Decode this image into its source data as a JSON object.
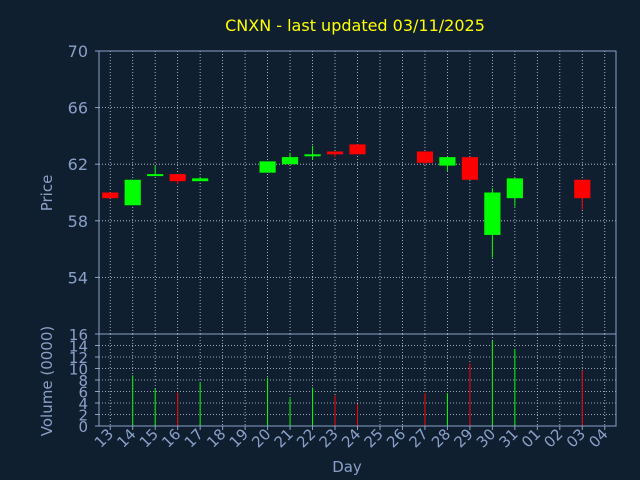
{
  "chart_data": [
    {
      "type": "candlestick",
      "title": "CNXN - last updated 03/11/2025",
      "ylabel": "Price",
      "ylim": [
        50,
        70
      ],
      "yticks": [
        54,
        58,
        62,
        66,
        70
      ],
      "grid": true,
      "categories": [
        "13",
        "14",
        "15",
        "16",
        "17",
        "18",
        "19",
        "20",
        "21",
        "22",
        "23",
        "24",
        "25",
        "26",
        "27",
        "28",
        "29",
        "30",
        "31",
        "01",
        "02",
        "03",
        "04"
      ],
      "candles": [
        {
          "x": "13",
          "open": 60.0,
          "close": 59.6,
          "high": 60.0,
          "low": 59.6
        },
        {
          "x": "14",
          "open": 59.1,
          "close": 60.9,
          "high": 60.9,
          "low": 59.1
        },
        {
          "x": "15",
          "open": 61.2,
          "close": 61.3,
          "high": 61.9,
          "low": 61.2
        },
        {
          "x": "16",
          "open": 61.3,
          "close": 60.8,
          "high": 61.3,
          "low": 60.6
        },
        {
          "x": "17",
          "open": 60.8,
          "close": 61.0,
          "high": 61.1,
          "low": 60.8
        },
        {
          "x": "20",
          "open": 61.4,
          "close": 62.2,
          "high": 62.2,
          "low": 61.4
        },
        {
          "x": "21",
          "open": 62.0,
          "close": 62.5,
          "high": 62.8,
          "low": 62.0
        },
        {
          "x": "22",
          "open": 62.6,
          "close": 62.7,
          "high": 63.3,
          "low": 62.3
        },
        {
          "x": "23",
          "open": 62.9,
          "close": 62.7,
          "high": 62.9,
          "low": 62.5
        },
        {
          "x": "24",
          "open": 63.4,
          "close": 62.7,
          "high": 63.4,
          "low": 62.7
        },
        {
          "x": "27",
          "open": 62.9,
          "close": 62.1,
          "high": 62.9,
          "low": 62.0
        },
        {
          "x": "28",
          "open": 61.9,
          "close": 62.5,
          "high": 62.5,
          "low": 61.5
        },
        {
          "x": "29",
          "open": 62.5,
          "close": 60.9,
          "high": 62.5,
          "low": 60.9
        },
        {
          "x": "30",
          "open": 57.0,
          "close": 60.0,
          "high": 60.3,
          "low": 55.4
        },
        {
          "x": "31",
          "open": 59.6,
          "close": 61.0,
          "high": 61.0,
          "low": 59.0
        },
        {
          "x": "03",
          "open": 60.9,
          "close": 59.6,
          "high": 60.9,
          "low": 58.8
        }
      ],
      "colors": {
        "up": "#00ff00",
        "down": "#ff0000"
      }
    },
    {
      "type": "bar",
      "ylabel": "Volume (0000)",
      "xlabel": "Day",
      "ylim": [
        0,
        16
      ],
      "yticks": [
        0,
        2,
        4,
        6,
        8,
        10,
        12,
        14,
        16
      ],
      "grid": true,
      "categories": [
        "13",
        "14",
        "15",
        "16",
        "17",
        "18",
        "19",
        "20",
        "21",
        "22",
        "23",
        "24",
        "25",
        "26",
        "27",
        "28",
        "29",
        "30",
        "31",
        "01",
        "02",
        "03",
        "04"
      ],
      "volumes": [
        {
          "x": "14",
          "value": 8.8,
          "dir": "up"
        },
        {
          "x": "15",
          "value": 6.5,
          "dir": "up"
        },
        {
          "x": "16",
          "value": 5.8,
          "dir": "down"
        },
        {
          "x": "17",
          "value": 7.6,
          "dir": "up"
        },
        {
          "x": "20",
          "value": 8.4,
          "dir": "up"
        },
        {
          "x": "21",
          "value": 4.8,
          "dir": "up"
        },
        {
          "x": "22",
          "value": 6.7,
          "dir": "up"
        },
        {
          "x": "23",
          "value": 5.3,
          "dir": "down"
        },
        {
          "x": "24",
          "value": 3.8,
          "dir": "down"
        },
        {
          "x": "27",
          "value": 5.7,
          "dir": "down"
        },
        {
          "x": "28",
          "value": 5.7,
          "dir": "up"
        },
        {
          "x": "29",
          "value": 10.9,
          "dir": "down"
        },
        {
          "x": "30",
          "value": 14.8,
          "dir": "up"
        },
        {
          "x": "31",
          "value": 13.4,
          "dir": "up"
        },
        {
          "x": "03",
          "value": 9.7,
          "dir": "down"
        }
      ]
    }
  ],
  "colors": {
    "background": "#0f1f30",
    "grid": "#c8d0dc",
    "axis": "#8aa0c8",
    "title": "#ffff00"
  }
}
